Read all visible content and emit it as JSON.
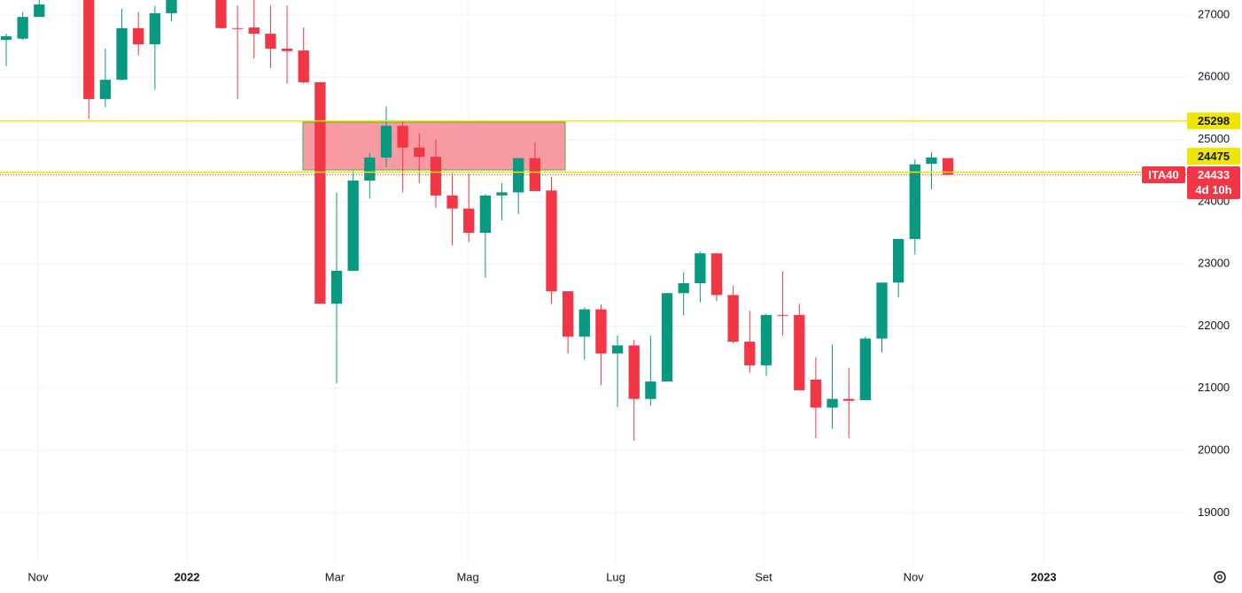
{
  "chart_data": {
    "type": "candlestick",
    "symbol": "ITA40",
    "up_color": "#089981",
    "down_color": "#f23645",
    "x": [
      0,
      1,
      2,
      5,
      6,
      7,
      8,
      9,
      10,
      13,
      14,
      15,
      16,
      17,
      18,
      19,
      20,
      21,
      22,
      23,
      24,
      25,
      26,
      27,
      28,
      29,
      30,
      31,
      32,
      33,
      34,
      35,
      36,
      37,
      38,
      39,
      40,
      41,
      42,
      43,
      44,
      45,
      46,
      47,
      48,
      49,
      50,
      51,
      52,
      53,
      54,
      55,
      56,
      57
    ],
    "open": [
      26600,
      26620,
      26970,
      27250,
      25650,
      25960,
      26790,
      26530,
      27030,
      27300,
      26790,
      26800,
      26700,
      26460,
      26430,
      25920,
      22360,
      22890,
      24340,
      24710,
      25220,
      24870,
      24720,
      24100,
      23890,
      23500,
      24100,
      24150,
      24700,
      24180,
      22560,
      21830,
      22270,
      21560,
      21690,
      20830,
      21110,
      22530,
      22690,
      23170,
      22500,
      21750,
      21370,
      22180,
      22180,
      21140,
      20690,
      20830,
      20810,
      21800,
      22700,
      23400,
      24610,
      24700
    ],
    "high": [
      26700,
      27050,
      27240,
      27300,
      26460,
      27100,
      27050,
      27150,
      27300,
      27300,
      27150,
      27300,
      27150,
      27150,
      26800,
      25920,
      24150,
      24500,
      24780,
      25530,
      25300,
      25100,
      25000,
      24460,
      24450,
      24120,
      24300,
      24700,
      24950,
      24400,
      22560,
      22300,
      22350,
      21850,
      21780,
      21850,
      22530,
      22870,
      23200,
      23170,
      22650,
      22250,
      22200,
      22880,
      22360,
      21500,
      21700,
      21330,
      21830,
      22700,
      23400,
      24680,
      24800,
      24700
    ],
    "low": [
      26180,
      26600,
      26970,
      25330,
      25520,
      25950,
      26350,
      25800,
      26900,
      26780,
      25650,
      26300,
      26150,
      25900,
      25900,
      22360,
      21080,
      22890,
      24050,
      24550,
      24150,
      24300,
      23900,
      23300,
      23350,
      22780,
      23700,
      23800,
      24170,
      22360,
      21560,
      21460,
      21050,
      20700,
      20160,
      20720,
      21110,
      22170,
      22380,
      22400,
      21720,
      21250,
      21200,
      21850,
      20970,
      20200,
      20350,
      20200,
      20810,
      21580,
      22460,
      23150,
      24200,
      24433
    ],
    "close": [
      26660,
      26970,
      27170,
      25650,
      25960,
      26790,
      26530,
      27030,
      27250,
      26790,
      26780,
      26700,
      26460,
      26420,
      25920,
      22360,
      22890,
      24340,
      24710,
      25220,
      24870,
      24720,
      24100,
      23890,
      23500,
      24100,
      24150,
      24700,
      24170,
      22560,
      21830,
      22270,
      21560,
      21690,
      20830,
      21110,
      22530,
      22690,
      23170,
      22500,
      21750,
      21370,
      22180,
      22170,
      20970,
      20690,
      20830,
      20800,
      21800,
      22700,
      23400,
      24600,
      24710,
      24433
    ],
    "xlim": [
      -0.375,
      71.47
    ],
    "xticks": [
      {
        "value": 1.93,
        "label": "Nov"
      },
      {
        "value": 10.94,
        "label": "2022"
      },
      {
        "value": 19.89,
        "label": "Mar"
      },
      {
        "value": 27.94,
        "label": "Mag"
      },
      {
        "value": 36.89,
        "label": "Lug"
      },
      {
        "value": 45.84,
        "label": "Set"
      },
      {
        "value": 54.91,
        "label": "Nov"
      },
      {
        "value": 62.79,
        "label": "2023"
      }
    ],
    "ylim": [
      18166,
      27242
    ],
    "yticks": [
      19000,
      20000,
      21000,
      22000,
      23000,
      24000,
      25000,
      26000,
      27000
    ],
    "grid": true,
    "hlines": [
      25298,
      24475
    ],
    "hline_color": "#f0e600",
    "zone": {
      "x": [
        17.96,
        33.83
      ],
      "y": [
        24510,
        25279
      ],
      "color": "#f23645",
      "border": "#4caf50"
    },
    "last_price": 24433,
    "countdown": "4d 10h"
  }
}
